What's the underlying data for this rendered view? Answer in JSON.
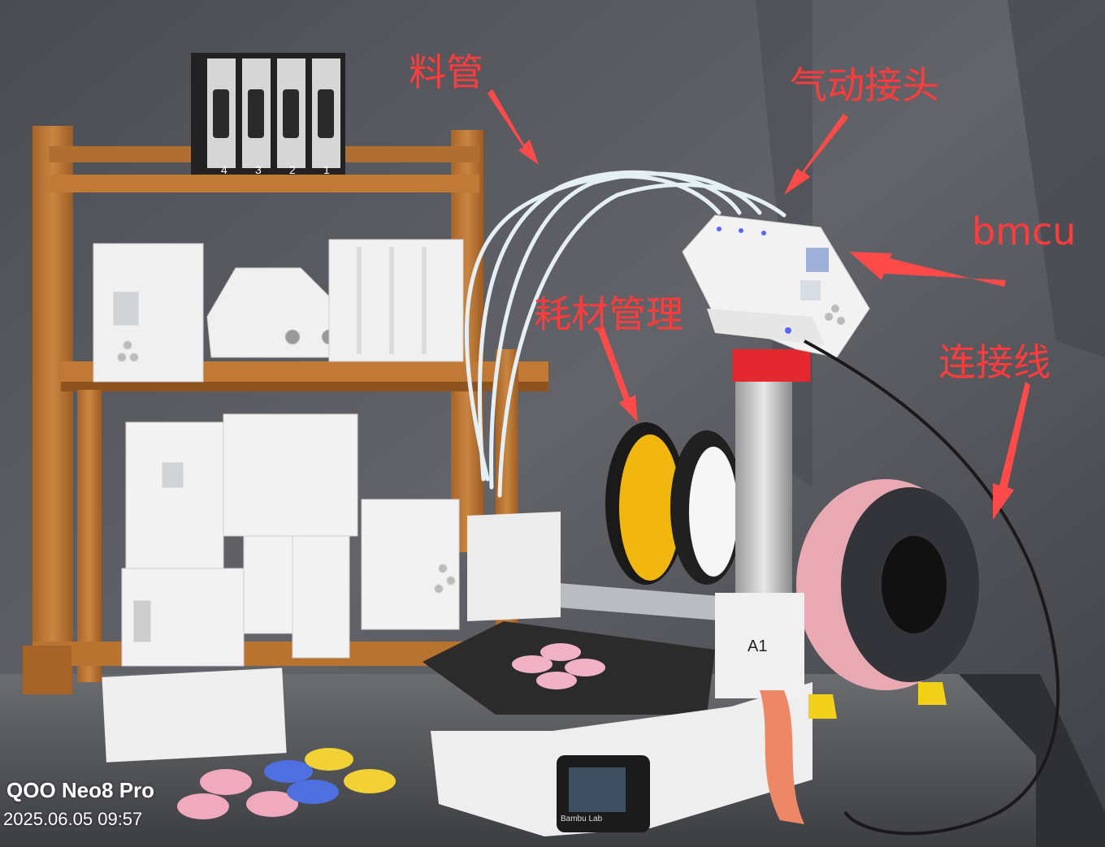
{
  "annotations": {
    "material_tube": "料管",
    "pneumatic_connector": "气动接头",
    "bmcu": "bmcu",
    "filament_management": "耗材管理",
    "connection_cable": "连接线"
  },
  "watermark": {
    "device": "QOO Neo8 Pro",
    "datetime": "2025.06.05 09:57"
  },
  "device_labels": {
    "slot_numbers": [
      "4",
      "3",
      "2",
      "1"
    ],
    "printer_model": "A1",
    "brand": "Bambu Lab"
  },
  "colors": {
    "annotation_red": "#ff3b3b",
    "arrow_red": "#ff4a4a",
    "backdrop": "#55575d",
    "shelf_wood": "#c07a35",
    "spool_yellow": "#f2b70f",
    "spool_pink": "#e8a9b3",
    "printer_white": "#eeeeee",
    "bed_dark": "#2b2b2b"
  }
}
